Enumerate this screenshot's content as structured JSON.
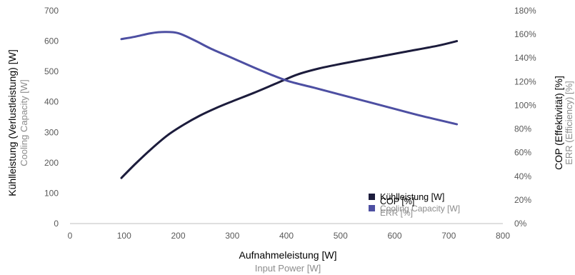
{
  "chart_data": {
    "type": "line",
    "grid": false,
    "legend_position": "bottom-right",
    "x_axis": {
      "label": "Aufnahmeleistung [W]",
      "label_secondary": "Input Power [W]",
      "range": [
        0,
        800
      ],
      "ticks": [
        "0",
        "100",
        "200",
        "300",
        "400",
        "500",
        "600",
        "700",
        "800"
      ]
    },
    "y_axis_left": {
      "label": "Kühlleistung (Verlustleistung) [W]",
      "label_secondary": "Cooling Capacity [W]",
      "range": [
        0,
        700
      ],
      "ticks": [
        "0",
        "100",
        "200",
        "300",
        "400",
        "500",
        "600",
        "700"
      ]
    },
    "y_axis_right": {
      "label": "COP (Effektivität) [%]",
      "label_secondary": "ERR (Efficiency) [%]",
      "range": [
        0,
        180
      ],
      "ticks": [
        "0%",
        "20%",
        "40%",
        "60%",
        "80%",
        "100%",
        "120%",
        "140%",
        "160%",
        "180%"
      ]
    },
    "series": [
      {
        "name": "Kühlleistung [W]",
        "name_secondary": "Cooling Capacity [W]",
        "axis": "left",
        "color": "#1c1c3c",
        "x": [
          95,
          120,
          150,
          180,
          210,
          240,
          270,
          300,
          340,
          380,
          420,
          460,
          500,
          560,
          620,
          680,
          715
        ],
        "y": [
          150,
          195,
          245,
          290,
          325,
          355,
          380,
          402,
          430,
          460,
          490,
          510,
          525,
          545,
          565,
          585,
          600
        ]
      },
      {
        "name": "COP [%]",
        "name_secondary": "ERR [%]",
        "axis": "right",
        "color": "#4d4fa2",
        "x": [
          95,
          120,
          150,
          175,
          200,
          230,
          260,
          300,
          350,
          400,
          450,
          500,
          550,
          600,
          650,
          715
        ],
        "y": [
          156,
          158,
          161,
          162,
          161,
          155,
          148,
          140,
          130,
          121,
          115,
          109,
          103,
          97,
          91,
          84
        ]
      }
    ]
  }
}
